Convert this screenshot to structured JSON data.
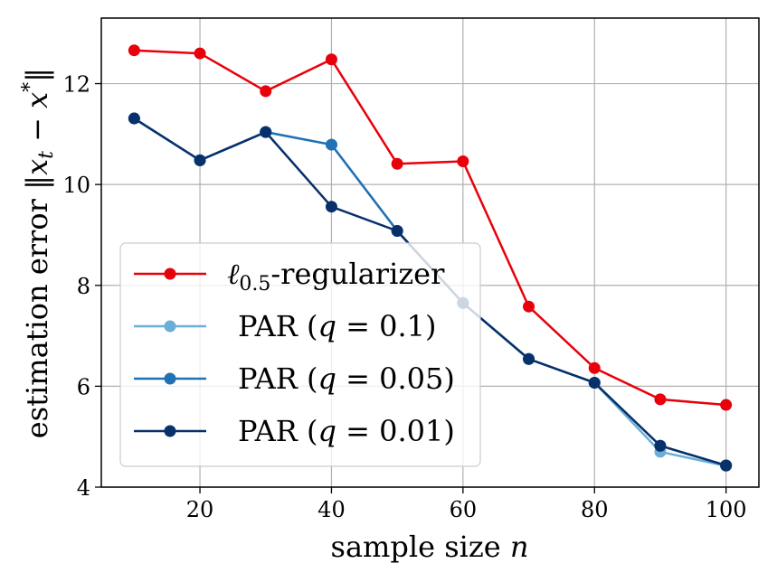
{
  "chart_data": {
    "type": "line",
    "title": "",
    "xlabel": "sample size n",
    "ylabel": "estimation error ||x_t − x*||",
    "xlim": [
      5,
      105
    ],
    "ylim": [
      4,
      13.3
    ],
    "xticks": [
      20,
      40,
      60,
      80,
      100
    ],
    "yticks": [
      4,
      6,
      8,
      10,
      12
    ],
    "grid": true,
    "legend_position": "lower-left",
    "x": [
      10,
      20,
      30,
      40,
      50,
      60,
      70,
      80,
      90,
      100
    ],
    "series": [
      {
        "name": "ℓ_0.5-regularizer",
        "color": "#e8000b",
        "values": [
          12.66,
          12.6,
          11.85,
          12.48,
          10.41,
          10.46,
          7.58,
          6.36,
          5.74,
          5.63
        ]
      },
      {
        "name": "PAR (q = 0.1)",
        "color": "#6baed6",
        "values": [
          11.31,
          10.48,
          11.04,
          10.79,
          9.08,
          7.65,
          6.54,
          6.07,
          4.7,
          4.42
        ]
      },
      {
        "name": "PAR (q = 0.05)",
        "color": "#2171b5",
        "values": [
          11.31,
          10.48,
          11.04,
          10.79,
          9.08,
          7.65,
          6.54,
          6.07,
          4.82,
          4.43
        ]
      },
      {
        "name": "PAR (q = 0.01)",
        "color": "#08306b",
        "values": [
          11.31,
          10.48,
          11.04,
          9.56,
          9.08,
          7.65,
          6.54,
          6.07,
          4.82,
          4.43
        ]
      }
    ],
    "legend": {
      "entries": [
        {
          "base": "ℓ",
          "sub": "0.5",
          "suffix": "-regularizer"
        },
        {
          "prefix": "PAR (",
          "var": "q",
          "eq": " = 0.1)"
        },
        {
          "prefix": "PAR (",
          "var": "q",
          "eq": " = 0.05)"
        },
        {
          "prefix": "PAR (",
          "var": "q",
          "eq": " = 0.01)"
        }
      ]
    },
    "axis_text": {
      "xlabel_text": "sample size ",
      "xlabel_var": "n",
      "ylabel_text": "estimation error ",
      "ylabel_math_open": "‖",
      "ylabel_var1": "x",
      "ylabel_sub": "t",
      "ylabel_minus": " − ",
      "ylabel_var2": "x",
      "ylabel_sup": "*",
      "ylabel_math_close": "‖"
    }
  }
}
